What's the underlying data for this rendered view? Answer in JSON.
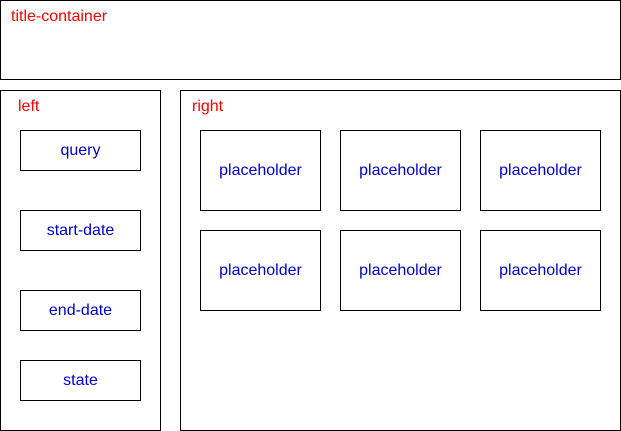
{
  "colors": {
    "container_label": "#ff0000",
    "box_label": "#0000cc",
    "border": "#000000"
  },
  "title_container": {
    "label": "title-container"
  },
  "left_panel": {
    "label": "left",
    "items": [
      {
        "label": "query"
      },
      {
        "label": "start-date"
      },
      {
        "label": "end-date"
      },
      {
        "label": "state"
      }
    ]
  },
  "right_panel": {
    "label": "right",
    "placeholders": [
      {
        "label": "placeholder"
      },
      {
        "label": "placeholder"
      },
      {
        "label": "placeholder"
      },
      {
        "label": "placeholder"
      },
      {
        "label": "placeholder"
      },
      {
        "label": "placeholder"
      }
    ]
  }
}
